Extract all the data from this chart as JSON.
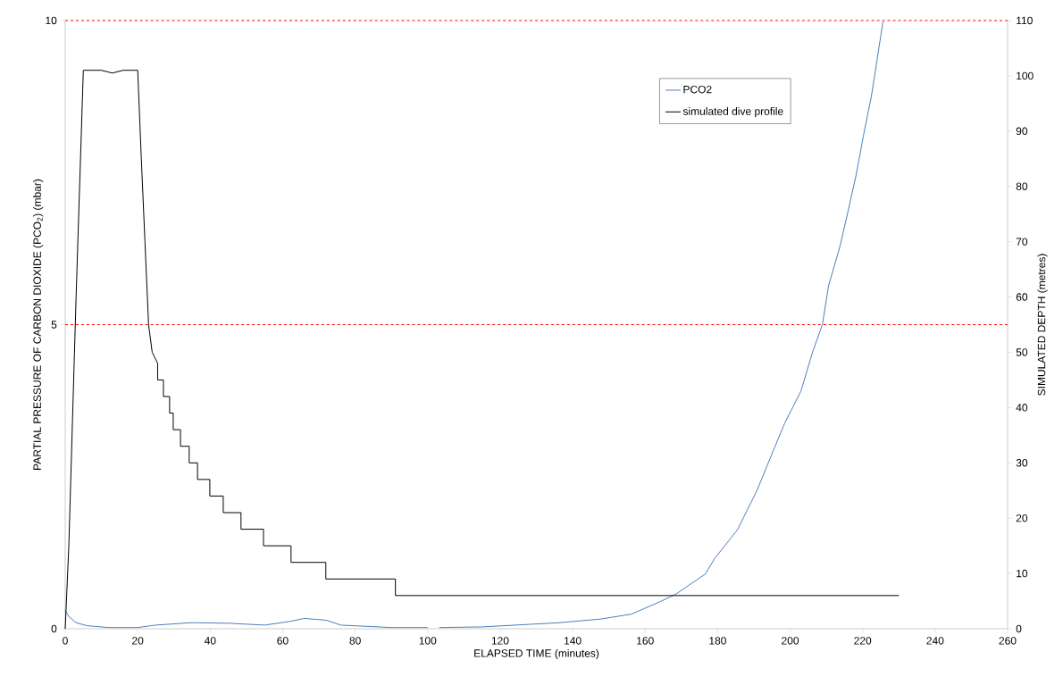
{
  "chart_data": {
    "type": "line",
    "xlabel": "ELAPSED TIME (minutes)",
    "ylabel": "PARTIAL PRESSURE OF CARBON DIOXIDE (PCO$_{2}$) (mbar)",
    "y2label": "SIMULATED DEPTH (metres)",
    "xlim": [
      0,
      260
    ],
    "xticks": [
      0,
      20,
      40,
      60,
      80,
      100,
      120,
      140,
      160,
      180,
      200,
      220,
      240,
      260
    ],
    "ylim": [
      0,
      10
    ],
    "yticks": [
      0,
      5,
      10
    ],
    "y2lim": [
      0,
      110
    ],
    "y2ticks": [
      0,
      10,
      20,
      30,
      40,
      50,
      60,
      70,
      80,
      90,
      100,
      110
    ],
    "grid": false,
    "legend": "top right",
    "marker": "none",
    "line_style": "solid",
    "ref_lines": [
      {
        "axis": "y",
        "value": 5,
        "color": "#ff0000",
        "line_style": "dashed"
      },
      {
        "axis": "y",
        "value": 10,
        "color": "#ff0000",
        "line_style": "dashed"
      }
    ],
    "series": [
      {
        "name": "PCO2",
        "color": "#4a7ebb",
        "axis": "y",
        "x": [
          0,
          1,
          3,
          6,
          12,
          20,
          25,
          35,
          45,
          55,
          62,
          66,
          72,
          76,
          90,
          100,
          101,
          103.2,
          115,
          136.5,
          147.8,
          156.2,
          164.3,
          168.5,
          176.6,
          179.1,
          185.5,
          190.9,
          195.3,
          198.5,
          203,
          206.2,
          208.9,
          210.6,
          213.8,
          216,
          218.2,
          220.2,
          222.4,
          224.1,
          225.6
        ],
        "values": [
          0.3,
          0.2,
          0.1,
          0.05,
          0.02,
          0.02,
          0.06,
          0.1,
          0.09,
          0.06,
          0.12,
          0.17,
          0.14,
          0.06,
          0.02,
          0.02,
          null,
          0.02,
          0.03,
          0.1,
          0.16,
          0.24,
          0.45,
          0.57,
          0.9,
          1.15,
          1.63,
          2.28,
          2.92,
          3.38,
          3.91,
          4.55,
          5.0,
          5.64,
          6.3,
          6.87,
          7.46,
          8.1,
          8.75,
          9.4,
          9.98
        ]
      },
      {
        "name": "simulated dive profile",
        "color": "#000000",
        "axis": "y2",
        "x": [
          0,
          1,
          3,
          5,
          10,
          13,
          16,
          20,
          21,
          22,
          23,
          24,
          25.5,
          25.5,
          27.1,
          27.1,
          28.8,
          28.8,
          29.8,
          29.8,
          31.8,
          31.8,
          34.2,
          34.2,
          36.5,
          36.5,
          39.9,
          39.9,
          43.6,
          43.6,
          48.5,
          48.5,
          54.7,
          54.7,
          62.3,
          62.3,
          71.9,
          71.9,
          91.1,
          91.1,
          230
        ],
        "values": [
          0,
          15,
          60,
          101,
          101,
          100.5,
          101,
          101,
          85,
          70,
          55,
          50,
          48,
          45,
          45,
          42,
          42,
          39,
          39,
          36,
          36,
          33,
          33,
          30,
          30,
          27,
          27,
          24,
          24,
          21,
          21,
          18,
          18,
          15,
          15,
          12,
          12,
          9,
          9,
          6,
          6
        ]
      }
    ]
  }
}
